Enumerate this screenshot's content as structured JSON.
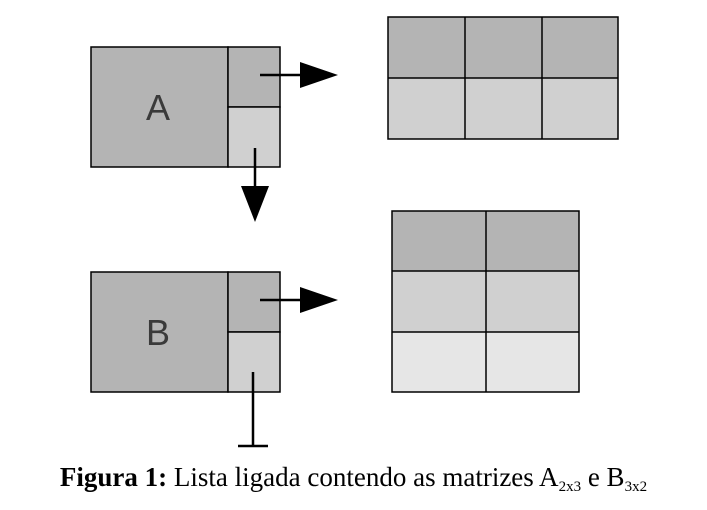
{
  "nodes": [
    {
      "label": "A",
      "rows": 2,
      "cols": 3,
      "next": "B"
    },
    {
      "label": "B",
      "rows": 3,
      "cols": 2,
      "next": null
    }
  ],
  "colors": {
    "node_fill": "#b4b4b4",
    "pointer_top_fill": "#b4b4b4",
    "pointer_bottom_fill": "#d0d0d0",
    "matrix_row1": "#b4b4b4",
    "matrix_row2": "#d0d0d0",
    "matrix_row3": "#e6e6e6",
    "stroke": "#000000"
  },
  "caption": {
    "prefix": "Figura 1:",
    "text": " Lista ligada contendo as matrizes A",
    "sub_a": "2x3",
    "mid": " e B",
    "sub_b": "3x2"
  }
}
